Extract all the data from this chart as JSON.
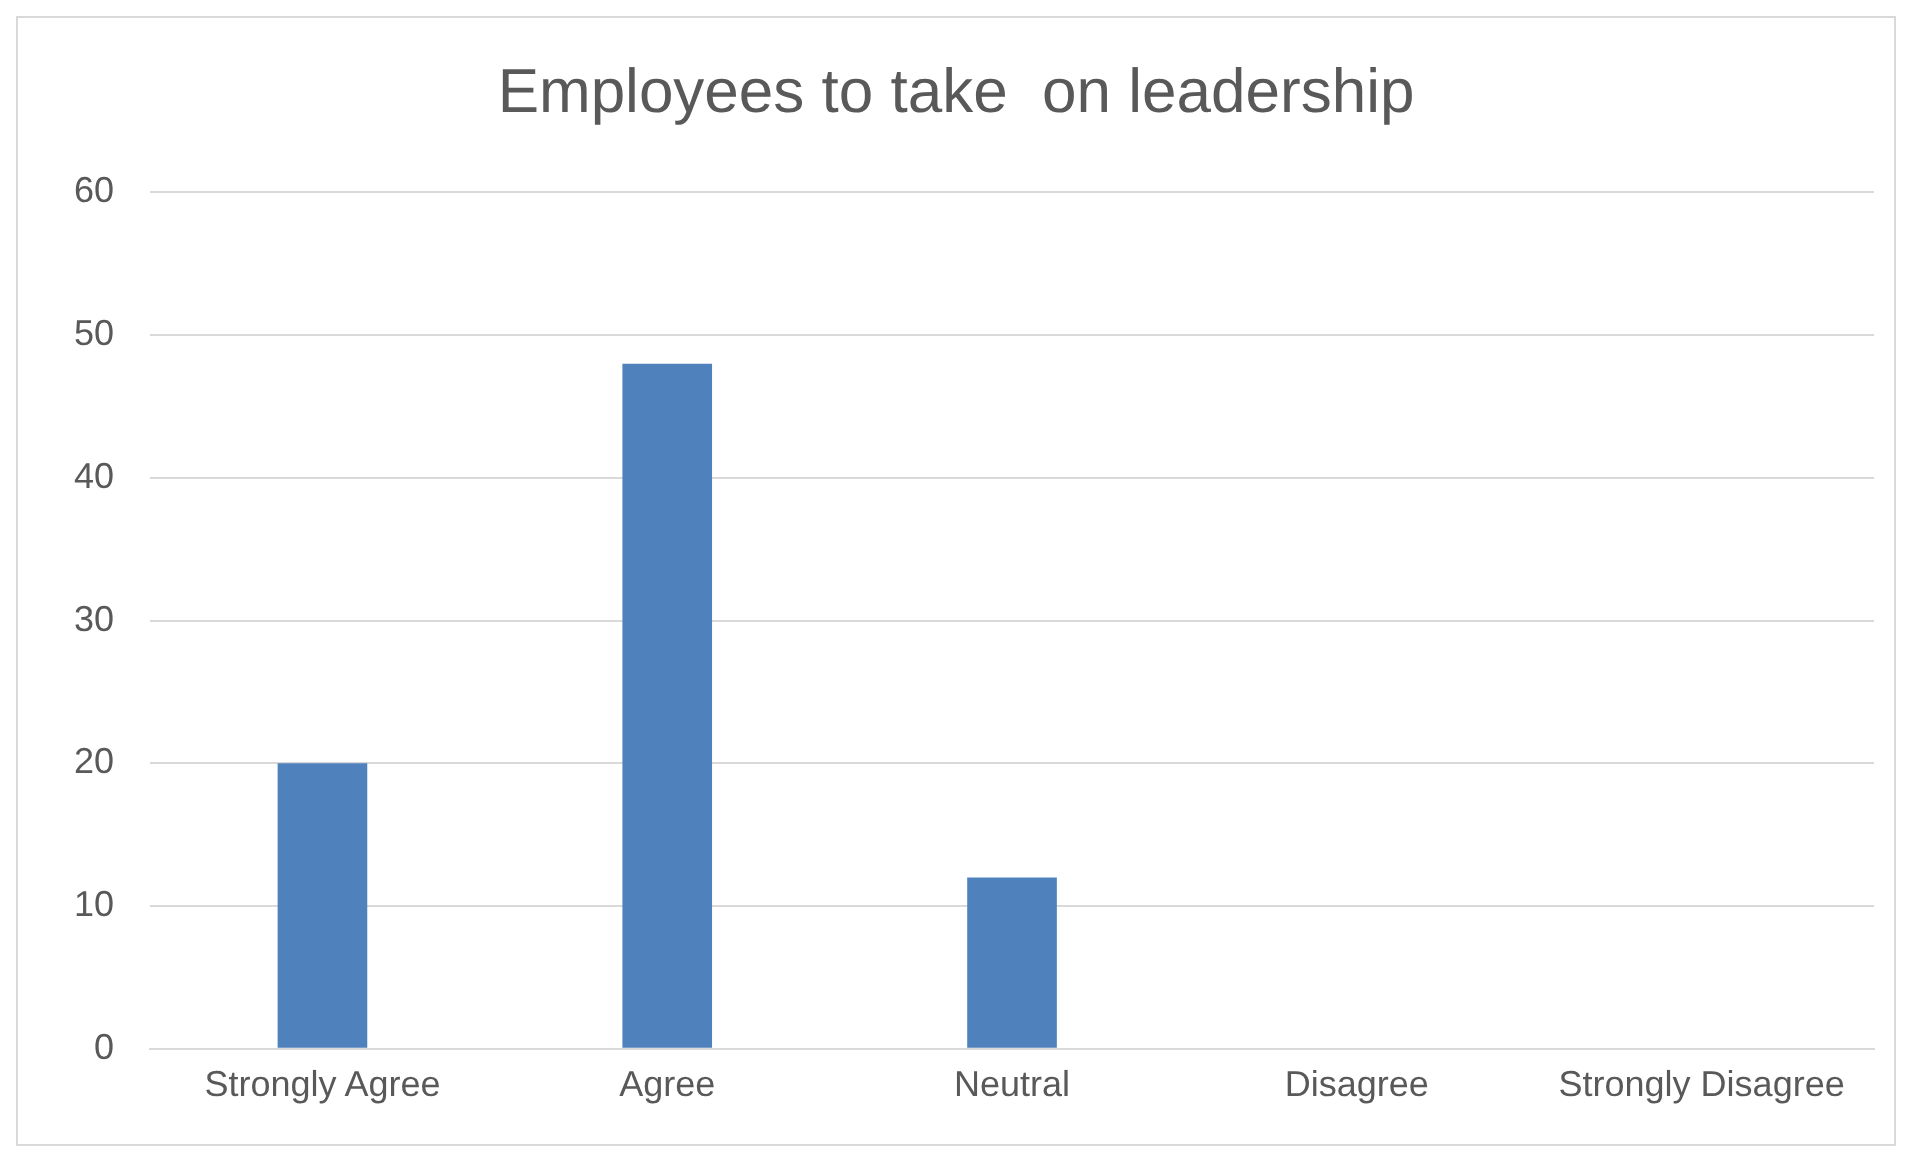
{
  "chart_data": {
    "type": "bar",
    "title": "Employees to take  on leadership",
    "categories": [
      "Strongly Agree",
      "Agree",
      "Neutral",
      "Disagree",
      "Strongly Disagree"
    ],
    "values": [
      20,
      48,
      12,
      0,
      0
    ],
    "color": "#4f81bd",
    "ylim": [
      0,
      60
    ],
    "yticks": [
      0,
      10,
      20,
      30,
      40,
      50,
      60
    ],
    "grid": "y",
    "legend": false
  }
}
